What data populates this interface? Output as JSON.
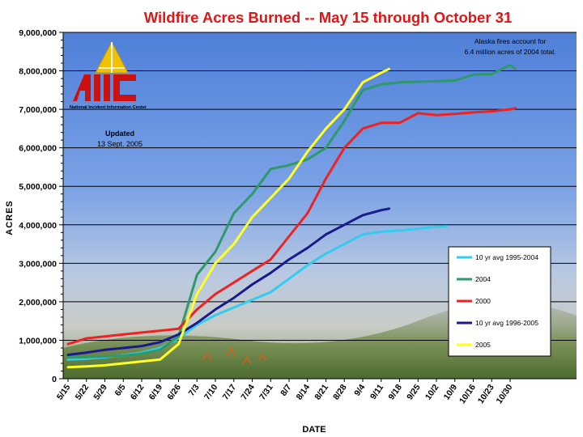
{
  "chart_data": {
    "type": "line",
    "title": "Wildfire Acres Burned -- May 15 through October 31",
    "xlabel": "DATE",
    "ylabel": "ACRES",
    "ylim": [
      0,
      9000000
    ],
    "yticks": [
      0,
      1000000,
      2000000,
      3000000,
      4000000,
      5000000,
      6000000,
      7000000,
      8000000,
      9000000
    ],
    "ytick_labels": [
      "0",
      "1,000,000",
      "2,000,000",
      "3,000,000",
      "4,000,000",
      "5,000,000",
      "6,000,000",
      "7,000,000",
      "8,000,000",
      "9,000,000"
    ],
    "x_ticks": [
      "5/15",
      "5/22",
      "5/29",
      "6/5",
      "6/12",
      "6/19",
      "6/26",
      "7/3",
      "7/10",
      "7/17",
      "7/24",
      "7/31",
      "8/7",
      "8/14",
      "8/21",
      "8/28",
      "9/4",
      "9/11",
      "9/18",
      "9/25",
      "10/2",
      "10/9",
      "10/16",
      "10/23",
      "10/30"
    ],
    "grid": true,
    "legend_position": "bottom-right",
    "series": [
      {
        "name": "10 yr avg 1995-2004",
        "color": "#33ccee",
        "x": [
          "5/15",
          "5/22",
          "5/29",
          "6/5",
          "6/12",
          "6/19",
          "6/26",
          "7/3",
          "7/10",
          "7/17",
          "7/24",
          "7/31",
          "8/7",
          "8/14",
          "8/21",
          "8/28",
          "9/4",
          "9/11",
          "9/18",
          "9/25",
          "10/2",
          "10/6"
        ],
        "values": [
          500000,
          520000,
          560000,
          610000,
          680000,
          800000,
          1050000,
          1400000,
          1650000,
          1850000,
          2050000,
          2250000,
          2600000,
          2950000,
          3250000,
          3500000,
          3750000,
          3820000,
          3850000,
          3900000,
          3950000,
          3960000
        ]
      },
      {
        "name": "2004",
        "color": "#2e9a6a",
        "x": [
          "5/15",
          "5/22",
          "5/29",
          "6/5",
          "6/12",
          "6/19",
          "6/26",
          "7/3",
          "7/10",
          "7/17",
          "7/24",
          "7/31",
          "8/7",
          "8/14",
          "8/21",
          "8/28",
          "9/4",
          "9/11",
          "9/18",
          "9/25",
          "10/2",
          "10/9",
          "10/16",
          "10/23",
          "10/30",
          "11/1"
        ],
        "values": [
          550000,
          560000,
          580000,
          600000,
          650000,
          750000,
          1100000,
          2700000,
          3300000,
          4300000,
          4800000,
          5450000,
          5550000,
          5700000,
          6000000,
          6700000,
          7500000,
          7650000,
          7700000,
          7720000,
          7730000,
          7750000,
          7900000,
          7920000,
          8150000,
          8050000
        ]
      },
      {
        "name": "2000",
        "color": "#ee2222",
        "x": [
          "5/15",
          "5/22",
          "5/29",
          "6/5",
          "6/12",
          "6/19",
          "6/26",
          "7/3",
          "7/10",
          "7/17",
          "7/24",
          "7/31",
          "8/7",
          "8/14",
          "8/21",
          "8/28",
          "9/4",
          "9/11",
          "9/18",
          "9/25",
          "10/2",
          "10/9",
          "10/16",
          "10/23",
          "10/30",
          "11/1"
        ],
        "values": [
          900000,
          1050000,
          1100000,
          1150000,
          1200000,
          1250000,
          1300000,
          1800000,
          2200000,
          2500000,
          2800000,
          3100000,
          3700000,
          4300000,
          5200000,
          6000000,
          6500000,
          6650000,
          6650000,
          6900000,
          6850000,
          6880000,
          6920000,
          6950000,
          7000000,
          7030000
        ]
      },
      {
        "name": "10 yr avg 1996-2005",
        "color": "#1a1a8c",
        "x": [
          "5/15",
          "5/22",
          "5/29",
          "6/5",
          "6/12",
          "6/19",
          "6/26",
          "7/3",
          "7/10",
          "7/17",
          "7/24",
          "7/31",
          "8/7",
          "8/14",
          "8/21",
          "8/28",
          "9/4",
          "9/11",
          "9/14"
        ],
        "values": [
          620000,
          680000,
          750000,
          800000,
          850000,
          950000,
          1150000,
          1450000,
          1800000,
          2100000,
          2450000,
          2750000,
          3100000,
          3400000,
          3750000,
          4000000,
          4250000,
          4380000,
          4420000
        ]
      },
      {
        "name": "2005",
        "color": "#ffff22",
        "x": [
          "5/15",
          "5/22",
          "5/29",
          "6/5",
          "6/12",
          "6/19",
          "6/26",
          "7/3",
          "7/10",
          "7/17",
          "7/24",
          "7/31",
          "8/7",
          "8/14",
          "8/21",
          "8/28",
          "9/4",
          "9/11",
          "9/14"
        ],
        "values": [
          300000,
          320000,
          350000,
          400000,
          450000,
          500000,
          900000,
          2200000,
          3000000,
          3500000,
          4200000,
          4700000,
          5200000,
          5900000,
          6500000,
          7000000,
          7700000,
          7950000,
          8050000
        ]
      }
    ],
    "annotations": [
      {
        "id": "alaska",
        "text": "Alaska fires account for",
        "text2": "6.4 million acres of 2004 total."
      },
      {
        "id": "updated",
        "text": "Updated",
        "text2": "13 Sept. 2005"
      }
    ],
    "logo": {
      "text": "National Incident Information Center",
      "color": "#cc1111"
    }
  }
}
